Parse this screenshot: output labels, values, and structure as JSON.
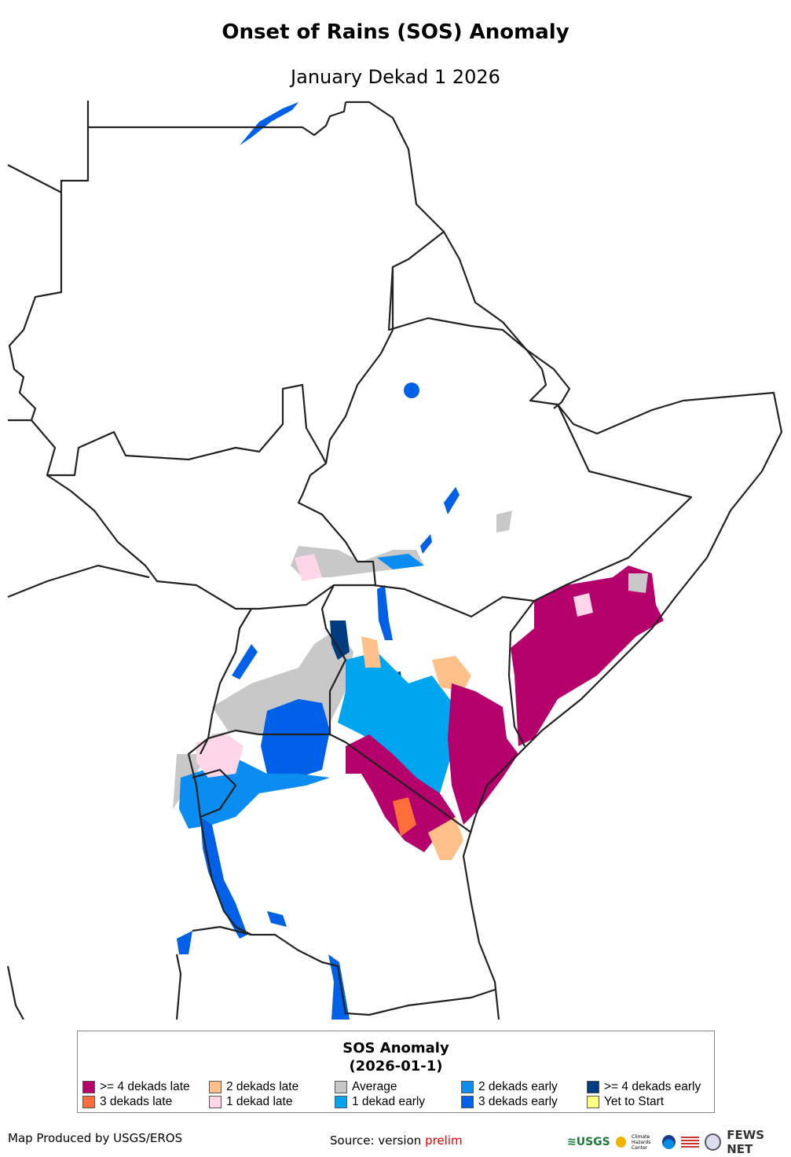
{
  "title": "Onset of Rains (SOS) Anomaly",
  "subtitle": "January Dekad 1 2026",
  "legend": {
    "title_line1": "SOS Anomaly",
    "title_line2": "(2026-01-1)",
    "items": [
      {
        "label": ">= 4 dekads late",
        "color": "#b5006b"
      },
      {
        "label": "3 dekads late",
        "color": "#ff6e3a"
      },
      {
        "label": "2 dekads late",
        "color": "#ffc08a"
      },
      {
        "label": "1 dekad late",
        "color": "#ffd6e8"
      },
      {
        "label": "Average",
        "color": "#c8c8c8"
      },
      {
        "label": "1 dekad early",
        "color": "#00a5f0"
      },
      {
        "label": "2 dekads early",
        "color": "#0a8cf0"
      },
      {
        "label": "3 dekads early",
        "color": "#0060e8"
      },
      {
        "label": ">= 4 dekads early",
        "color": "#003c7f"
      },
      {
        "label": "Yet to Start",
        "color": "#ffff80"
      }
    ]
  },
  "footer": {
    "credit": "Map Produced by USGS/EROS",
    "source_prefix": "Source: version",
    "source_version": "prelim",
    "logos": [
      "USGS",
      "Climate Hazards Center",
      "NOAA",
      "US Flag",
      "State Department Seal",
      "FEWS NET"
    ]
  }
}
